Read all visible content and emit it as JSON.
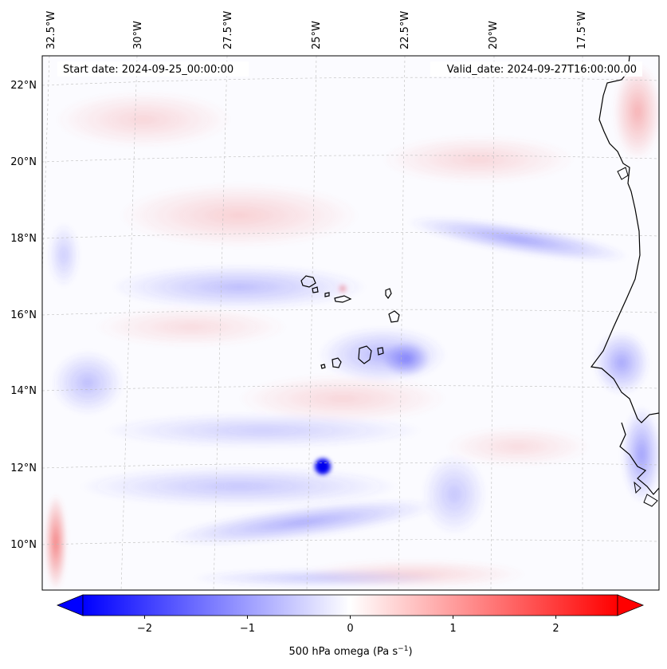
{
  "map": {
    "start_label": "Start date: 2024-09-25_00:00:00",
    "valid_label": "Valid_date: 2024-09-27T16:00:00.00",
    "lon_labels": [
      "32.5°W",
      "30°W",
      "27.5°W",
      "25°W",
      "22.5°W",
      "20°W",
      "17.5°W"
    ],
    "lat_labels": [
      "22°N",
      "20°N",
      "18°N",
      "16°N",
      "14°N",
      "12°N",
      "10°N"
    ],
    "colors": {
      "negative": "#0000ff",
      "zero": "#ffffff",
      "positive": "#ff0000",
      "coast": "#000000",
      "grid": "#bdbdbd"
    }
  },
  "colorbar": {
    "label": "500 hPa omega (Pa s",
    "label_exp": "−1",
    "label_close": ")",
    "ticks": [
      "−2",
      "−1",
      "0",
      "1",
      "2"
    ],
    "tick_values": [
      -2,
      -1,
      0,
      1,
      2
    ],
    "range": [
      -2.6,
      2.6
    ],
    "extend": "both"
  }
}
